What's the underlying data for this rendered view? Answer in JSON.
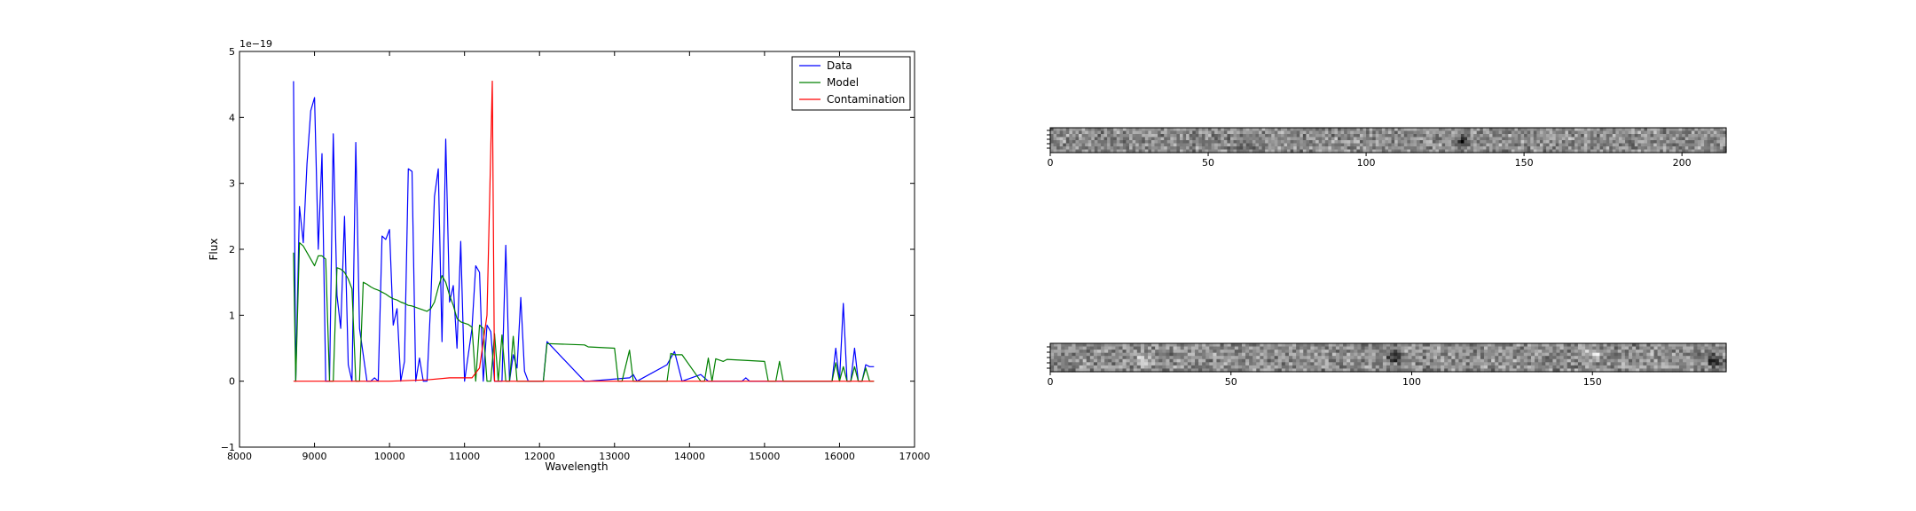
{
  "spectrum": {
    "ylabel": "Flux",
    "xlabel": "Wavelength",
    "offset_label": "1e−19",
    "xlim": [
      8000,
      17000
    ],
    "ylim": [
      -1,
      5
    ],
    "x_ticks": [
      "8000",
      "9000",
      "10000",
      "11000",
      "12000",
      "13000",
      "14000",
      "15000",
      "16000",
      "17000"
    ],
    "y_ticks": [
      "−1",
      "0",
      "1",
      "2",
      "3",
      "4",
      "5"
    ],
    "legend_position": "top-right",
    "legend": [
      "Data",
      "Model",
      "Contamination"
    ]
  },
  "image1": {
    "xlim": [
      0,
      214
    ],
    "x_ticks": [
      "0",
      "50",
      "100",
      "150",
      "200"
    ]
  },
  "image2": {
    "xlim": [
      0,
      187
    ],
    "x_ticks": [
      "0",
      "50",
      "100",
      "150"
    ]
  },
  "colors": {
    "data": "#0000ff",
    "model": "#008000",
    "contamination": "#ff0000"
  },
  "chart_data": [
    {
      "type": "line",
      "xlabel": "Wavelength",
      "ylabel": "Flux",
      "y_scale_label": "1e−19",
      "xlim": [
        8000,
        17000
      ],
      "ylim": [
        -1,
        5
      ],
      "grid": false,
      "legend_position": "top-right",
      "series": [
        {
          "name": "Data",
          "x": [
            8720,
            8750,
            8800,
            8850,
            8900,
            8950,
            9000,
            9050,
            9100,
            9150,
            9200,
            9250,
            9300,
            9350,
            9400,
            9450,
            9500,
            9550,
            9600,
            9650,
            9700,
            9750,
            9800,
            9850,
            9900,
            9950,
            10000,
            10050,
            10100,
            10150,
            10200,
            10250,
            10300,
            10350,
            10400,
            10450,
            10500,
            10550,
            10600,
            10650,
            10700,
            10750,
            10800,
            10850,
            10900,
            10950,
            11000,
            11050,
            11100,
            11150,
            11200,
            11250,
            11300,
            11350,
            11400,
            11450,
            11500,
            11550,
            11600,
            11650,
            11700,
            11750,
            11800,
            11850,
            11900,
            11950,
            12000,
            12050,
            12100,
            12600,
            12650,
            13200,
            13250,
            13300,
            13700,
            13750,
            13800,
            13900,
            14150,
            14200,
            14250,
            14700,
            14750,
            14800,
            15900,
            15950,
            16000,
            16050,
            16100,
            16150,
            16200,
            16250,
            16300,
            16350,
            16400,
            16460
          ],
          "y": [
            4.55,
            0.0,
            2.65,
            2.1,
            3.3,
            4.1,
            4.3,
            2.0,
            3.45,
            0.0,
            0.0,
            3.75,
            1.3,
            0.8,
            2.5,
            0.25,
            0.0,
            3.62,
            0.8,
            0.4,
            0.0,
            0.0,
            0.05,
            0.0,
            2.2,
            2.15,
            2.3,
            0.85,
            1.1,
            0.0,
            0.3,
            3.22,
            3.18,
            0.0,
            0.35,
            0.0,
            0.0,
            1.2,
            2.8,
            3.22,
            0.6,
            3.67,
            1.2,
            1.45,
            0.5,
            2.12,
            0.0,
            0.4,
            0.8,
            1.75,
            1.65,
            0.0,
            0.85,
            0.75,
            0.0,
            0.0,
            0.0,
            2.06,
            0.0,
            0.4,
            0.2,
            1.27,
            0.15,
            0.0,
            0.0,
            0.0,
            0.0,
            0.0,
            0.6,
            0.0,
            0.0,
            0.05,
            0.1,
            0.0,
            0.25,
            0.35,
            0.45,
            0.0,
            0.1,
            0.05,
            0.0,
            0.0,
            0.05,
            0.0,
            0.0,
            0.5,
            0.0,
            1.18,
            0.0,
            0.0,
            0.5,
            0.0,
            0.0,
            0.25,
            0.22,
            0.22
          ]
        },
        {
          "name": "Model",
          "x": [
            8720,
            8750,
            8800,
            8850,
            8900,
            8950,
            9000,
            9050,
            9100,
            9150,
            9200,
            9250,
            9300,
            9350,
            9400,
            9450,
            9500,
            9550,
            9600,
            9650,
            9700,
            9750,
            9800,
            9850,
            9900,
            9950,
            10000,
            10050,
            10100,
            10150,
            10200,
            10250,
            10300,
            10350,
            10400,
            10450,
            10500,
            10550,
            10600,
            10650,
            10700,
            10750,
            10800,
            10850,
            10900,
            10950,
            11000,
            11050,
            11100,
            11150,
            11200,
            11250,
            11300,
            11350,
            11400,
            11450,
            11500,
            11550,
            11600,
            11650,
            11700,
            11750,
            11800,
            11850,
            11900,
            11950,
            12000,
            12050,
            12100,
            12600,
            12650,
            13000,
            13050,
            13100,
            13200,
            13250,
            13300,
            13700,
            13750,
            13800,
            13900,
            14150,
            14200,
            14250,
            14300,
            14350,
            14400,
            14450,
            14500,
            15000,
            15050,
            15150,
            15200,
            15250,
            15900,
            15950,
            16000,
            16050,
            16100,
            16150,
            16200,
            16250,
            16300,
            16350,
            16400,
            16460
          ],
          "y": [
            1.95,
            0.0,
            2.1,
            2.05,
            1.95,
            1.85,
            1.75,
            1.9,
            1.9,
            1.85,
            0.0,
            0.0,
            1.72,
            1.7,
            1.65,
            1.55,
            1.4,
            0.0,
            0.0,
            1.5,
            1.47,
            1.43,
            1.4,
            1.38,
            1.35,
            1.32,
            1.28,
            1.25,
            1.23,
            1.2,
            1.18,
            1.15,
            1.14,
            1.12,
            1.1,
            1.08,
            1.06,
            1.1,
            1.2,
            1.42,
            1.6,
            1.5,
            1.3,
            1.15,
            0.95,
            0.9,
            0.88,
            0.86,
            0.82,
            0.0,
            0.85,
            0.8,
            0.0,
            0.0,
            0.72,
            0.0,
            0.7,
            0.0,
            0.0,
            0.68,
            0.0,
            0.0,
            0.0,
            0.0,
            0.0,
            0.0,
            0.0,
            0.0,
            0.57,
            0.55,
            0.52,
            0.5,
            0.0,
            0.0,
            0.47,
            0.0,
            0.0,
            0.0,
            0.42,
            0.4,
            0.4,
            0.0,
            0.0,
            0.35,
            0.0,
            0.34,
            0.32,
            0.3,
            0.33,
            0.3,
            0.0,
            0.0,
            0.3,
            0.0,
            0.0,
            0.28,
            0.0,
            0.22,
            0.0,
            0.0,
            0.22,
            0.0,
            0.0,
            0.2,
            0.0,
            0.0
          ]
        },
        {
          "name": "Contamination",
          "x": [
            8720,
            9000,
            9500,
            10000,
            10500,
            10800,
            11000,
            11100,
            11200,
            11300,
            11340,
            11370,
            11400,
            11450,
            16460
          ],
          "y": [
            0.0,
            0.0,
            0.0,
            0.0,
            0.02,
            0.05,
            0.05,
            0.05,
            0.2,
            1.0,
            3.0,
            4.55,
            0.0,
            0.0,
            0.0
          ]
        }
      ]
    },
    {
      "type": "heatmap",
      "xlim": [
        0,
        214
      ],
      "x_ticks": [
        0,
        50,
        100,
        150,
        200
      ]
    },
    {
      "type": "heatmap",
      "xlim": [
        0,
        187
      ],
      "x_ticks": [
        0,
        50,
        100,
        150
      ]
    }
  ]
}
